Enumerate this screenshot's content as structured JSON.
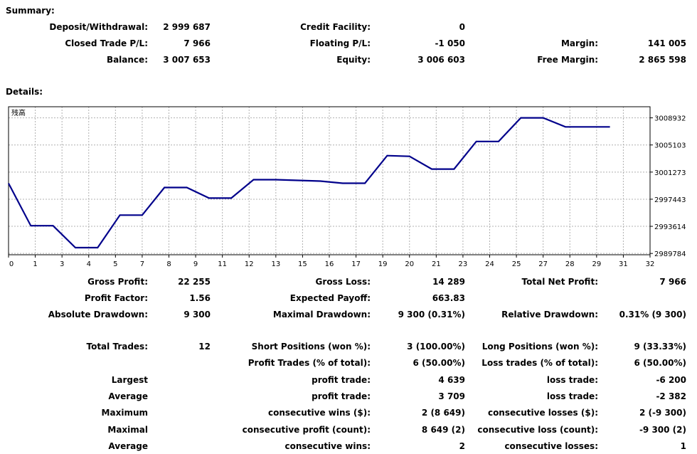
{
  "summary": {
    "title": "Summary:",
    "deposit_label": "Deposit/Withdrawal:",
    "deposit_value": "2 999 687",
    "credit_label": "Credit Facility:",
    "credit_value": "0",
    "closed_label": "Closed Trade P/L:",
    "closed_value": "7 966",
    "floating_label": "Floating P/L:",
    "floating_value": "-1 050",
    "margin_label": "Margin:",
    "margin_value": "141 005",
    "balance_label": "Balance:",
    "balance_value": "3 007 653",
    "equity_label": "Equity:",
    "equity_value": "3 006 603",
    "free_margin_label": "Free Margin:",
    "free_margin_value": "2 865 598"
  },
  "details": {
    "title": "Details:",
    "gross_profit_label": "Gross Profit:",
    "gross_profit_value": "22 255",
    "gross_loss_label": "Gross Loss:",
    "gross_loss_value": "14 289",
    "total_net_label": "Total Net Profit:",
    "total_net_value": "7 966",
    "profit_factor_label": "Profit Factor:",
    "profit_factor_value": "1.56",
    "expected_payoff_label": "Expected Payoff:",
    "expected_payoff_value": "663.83",
    "abs_dd_label": "Absolute Drawdown:",
    "abs_dd_value": "9 300",
    "max_dd_label": "Maximal Drawdown:",
    "max_dd_value": "9 300 (0.31%)",
    "rel_dd_label": "Relative Drawdown:",
    "rel_dd_value": "0.31% (9 300)",
    "total_trades_label": "Total Trades:",
    "total_trades_value": "12",
    "short_label": "Short Positions (won %):",
    "short_value": "3 (100.00%)",
    "long_label": "Long Positions (won %):",
    "long_value": "9 (33.33%)",
    "profit_trades_label": "Profit Trades (% of total):",
    "profit_trades_value": "6 (50.00%)",
    "loss_trades_label": "Loss trades (% of total):",
    "loss_trades_value": "6 (50.00%)",
    "largest_label": "Largest",
    "largest_profit_label": "profit trade:",
    "largest_profit_value": "4 639",
    "largest_loss_label": "loss trade:",
    "largest_loss_value": "-6 200",
    "average_label": "Average",
    "avg_profit_label": "profit trade:",
    "avg_profit_value": "3 709",
    "avg_loss_label": "loss trade:",
    "avg_loss_value": "-2 382",
    "maximum_label": "Maximum",
    "cons_wins_label": "consecutive wins ($):",
    "cons_wins_value": "2 (8 649)",
    "cons_losses_label": "consecutive losses ($):",
    "cons_losses_value": "2 (-9 300)",
    "maximal_label": "Maximal",
    "cons_profit_label": "consecutive profit (count):",
    "cons_profit_value": "8 649 (2)",
    "cons_loss_label": "consecutive loss (count):",
    "cons_loss_value": "-9 300 (2)",
    "average2_label": "Average",
    "avg_cons_wins_label": "consecutive wins:",
    "avg_cons_wins_value": "2",
    "avg_cons_losses_label": "consecutive losses:",
    "avg_cons_losses_value": "1"
  },
  "chart_data": {
    "type": "line",
    "title": "",
    "legend_label": "残高",
    "line_color": "#00008b",
    "grid": true,
    "x_ticks": [
      0,
      1,
      3,
      4,
      5,
      7,
      8,
      9,
      11,
      12,
      13,
      15,
      16,
      17,
      19,
      20,
      21,
      23,
      24,
      25,
      27,
      28,
      29,
      31,
      32
    ],
    "y_ticks": [
      2989784,
      2993614,
      2997443,
      3001273,
      3005103,
      3008932
    ],
    "xlim": [
      0,
      32
    ],
    "ylim": [
      2989600,
      3010500
    ],
    "series": [
      {
        "x": [
          0,
          1,
          2,
          3,
          4,
          5,
          6,
          7,
          8,
          9,
          10,
          11,
          12,
          13,
          14,
          15,
          16,
          17,
          18,
          19,
          20,
          21,
          22,
          23,
          24,
          25,
          26,
          27
        ],
        "y": [
          2999687,
          2993700,
          2993700,
          2990600,
          2990600,
          2995200,
          2995200,
          2999100,
          2999100,
          2997600,
          2997600,
          3000200,
          3000200,
          3000100,
          3000000,
          2999700,
          2999700,
          3003600,
          3003500,
          3001700,
          3001700,
          3005600,
          3005600,
          3008932,
          3008932,
          3007653,
          3007653,
          3007653
        ]
      }
    ]
  }
}
